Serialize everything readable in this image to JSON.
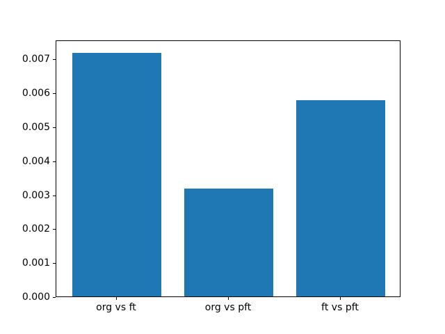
{
  "chart_data": {
    "type": "bar",
    "categories": [
      "org vs ft",
      "org vs pft",
      "ft vs pft"
    ],
    "values": [
      0.0072,
      0.0032,
      0.0058
    ],
    "title": "",
    "xlabel": "",
    "ylabel": "",
    "ylim": [
      0,
      0.00756
    ],
    "xlim": [
      -0.54,
      2.54
    ],
    "bar_width_units": 0.8,
    "yticks": [
      {
        "value": 0.0,
        "label": "0.000"
      },
      {
        "value": 0.001,
        "label": "0.001"
      },
      {
        "value": 0.002,
        "label": "0.002"
      },
      {
        "value": 0.003,
        "label": "0.003"
      },
      {
        "value": 0.004,
        "label": "0.004"
      },
      {
        "value": 0.005,
        "label": "0.005"
      },
      {
        "value": 0.006,
        "label": "0.006"
      },
      {
        "value": 0.007,
        "label": "0.007"
      }
    ],
    "grid": false,
    "legend": null,
    "bar_color": "#1f77b4",
    "background_color": "#ffffff",
    "spine_color": "#000000",
    "tick_color": "#000000"
  }
}
